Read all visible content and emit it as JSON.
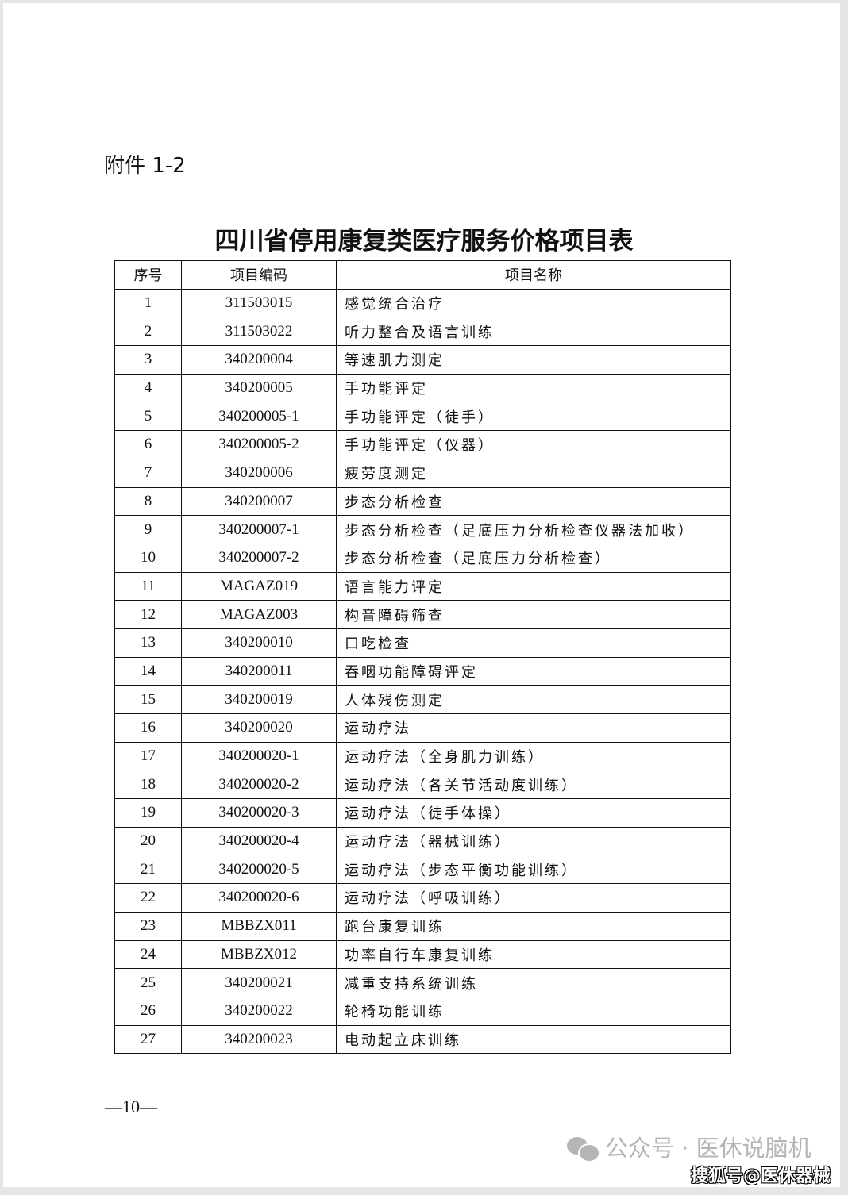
{
  "attachment_label": "附件 1-2",
  "title": "四川省停用康复类医疗服务价格项目表",
  "table": {
    "headers": [
      "序号",
      "项目编码",
      "项目名称"
    ],
    "rows": [
      [
        "1",
        "311503015",
        "感觉统合治疗"
      ],
      [
        "2",
        "311503022",
        "听力整合及语言训练"
      ],
      [
        "3",
        "340200004",
        "等速肌力测定"
      ],
      [
        "4",
        "340200005",
        "手功能评定"
      ],
      [
        "5",
        "340200005-1",
        "手功能评定（徒手）"
      ],
      [
        "6",
        "340200005-2",
        "手功能评定（仪器）"
      ],
      [
        "7",
        "340200006",
        "疲劳度测定"
      ],
      [
        "8",
        "340200007",
        "步态分析检查"
      ],
      [
        "9",
        "340200007-1",
        "步态分析检查（足底压力分析检查仪器法加收）"
      ],
      [
        "10",
        "340200007-2",
        "步态分析检查（足底压力分析检查）"
      ],
      [
        "11",
        "MAGAZ019",
        "语言能力评定"
      ],
      [
        "12",
        "MAGAZ003",
        "构音障碍筛查"
      ],
      [
        "13",
        "340200010",
        "口吃检查"
      ],
      [
        "14",
        "340200011",
        "吞咽功能障碍评定"
      ],
      [
        "15",
        "340200019",
        "人体残伤测定"
      ],
      [
        "16",
        "340200020",
        "运动疗法"
      ],
      [
        "17",
        "340200020-1",
        "运动疗法（全身肌力训练）"
      ],
      [
        "18",
        "340200020-2",
        "运动疗法（各关节活动度训练）"
      ],
      [
        "19",
        "340200020-3",
        "运动疗法（徒手体操）"
      ],
      [
        "20",
        "340200020-4",
        "运动疗法（器械训练）"
      ],
      [
        "21",
        "340200020-5",
        "运动疗法（步态平衡功能训练）"
      ],
      [
        "22",
        "340200020-6",
        "运动疗法（呼吸训练）"
      ],
      [
        "23",
        "MBBZX011",
        "跑台康复训练"
      ],
      [
        "24",
        "MBBZX012",
        "功率自行车康复训练"
      ],
      [
        "25",
        "340200021",
        "减重支持系统训练"
      ],
      [
        "26",
        "340200022",
        "轮椅功能训练"
      ],
      [
        "27",
        "340200023",
        "电动起立床训练"
      ]
    ]
  },
  "page_number": "—10—",
  "watermark": {
    "icon": "wechat-icon",
    "wechat_text": "公众号 · 医休说脑机",
    "sohu_text": "搜狐号@医休器械"
  }
}
